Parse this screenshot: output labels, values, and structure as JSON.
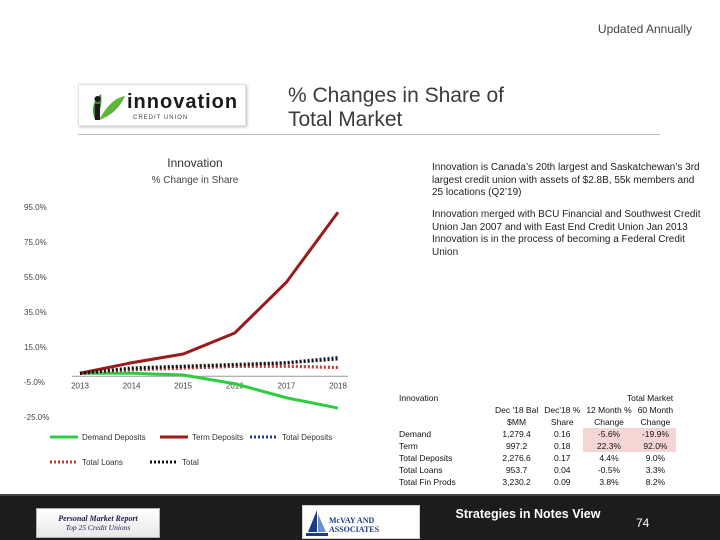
{
  "header": {
    "updated": "Updated Annually",
    "title_line1": "% Changes in Share of",
    "title_line2": "Total Market",
    "logo_text": "innovation",
    "logo_sub": "CREDIT UNION"
  },
  "info": {
    "para1": "Innovation is Canada’s 20th largest and Saskatchewan’s 3rd largest credit union with assets of $2.8B, 55k members and 25 locations (Q2’19)",
    "para2": "Innovation merged with BCU Financial and Southwest Credit Union Jan 2007 and with East End Credit Union Jan 2013",
    "para3": "Innovation is in the process of becoming a Federal Credit Union"
  },
  "chart_data": {
    "type": "line",
    "title": "Innovation",
    "subtitle": "% Change in Share",
    "x": [
      "2013",
      "2014",
      "2015",
      "2016",
      "2017",
      "2018"
    ],
    "yticks": [
      "95.0%",
      "75.0%",
      "55.0%",
      "35.0%",
      "15.0%",
      "-5.0%",
      "-25.0%"
    ],
    "ylim": [
      -25,
      95
    ],
    "series": [
      {
        "name": "Demand Deposits",
        "color": "#2ecc40",
        "style": "solid",
        "values": [
          0,
          0,
          -1,
          -6,
          -14,
          -19.9
        ]
      },
      {
        "name": "Term Deposits",
        "color": "#9b1b1b",
        "style": "solid",
        "values": [
          0,
          6,
          11,
          23,
          52,
          92
        ]
      },
      {
        "name": "Total Deposits",
        "color": "#1f3a93",
        "style": "dotted",
        "values": [
          0,
          2,
          3,
          4,
          6,
          9
        ]
      },
      {
        "name": "Total Loans",
        "color": "#c0392b",
        "style": "dotted",
        "values": [
          0,
          2,
          3,
          4,
          4,
          3.3
        ]
      },
      {
        "name": "Total",
        "color": "#111111",
        "style": "dotted",
        "values": [
          0,
          3,
          4,
          5,
          6,
          8.2
        ]
      }
    ]
  },
  "table": {
    "header_left": "Innovation",
    "header_right": "Total Market",
    "col1_head1": "Dec '18 Bal",
    "col1_head2": "$MM",
    "col2_head1": "Dec'18 %",
    "col2_head2": "Share",
    "col3_head1": "12 Month %",
    "col3_head2": "Change",
    "col4_head1": "60 Month",
    "col4_head2": "Change",
    "rows": [
      {
        "label": "Demand",
        "bal": "1,279.4",
        "share": "0.16",
        "m12": "-5.6%",
        "m60": "-19.9%",
        "highlight": true
      },
      {
        "label": "Term",
        "bal": "997.2",
        "share": "0.18",
        "m12": "22.3%",
        "m60": "92.0%",
        "highlight": true
      },
      {
        "label": "Total Deposits",
        "bal": "2,276.6",
        "share": "0.17",
        "m12": "4.4%",
        "m60": "9.0%",
        "highlight": false
      },
      {
        "label": "Total Loans",
        "bal": "953.7",
        "share": "0.04",
        "m12": "-0.5%",
        "m60": "3.3%",
        "highlight": false
      },
      {
        "label": "Total Fin Prods",
        "bal": "3,230.2",
        "share": "0.09",
        "m12": "3.8%",
        "m60": "8.2%",
        "highlight": false
      }
    ]
  },
  "footer": {
    "report_line1": "Personal Market Report",
    "report_line2": "Top 25 Credit Unions",
    "partner": "McVAY AND ASSOCIATES",
    "strategies": "Strategies in Notes View",
    "page": "74"
  },
  "colors": {
    "highlight_bg": "#f6d5d5",
    "dark_bar": "#1c1c1c"
  }
}
